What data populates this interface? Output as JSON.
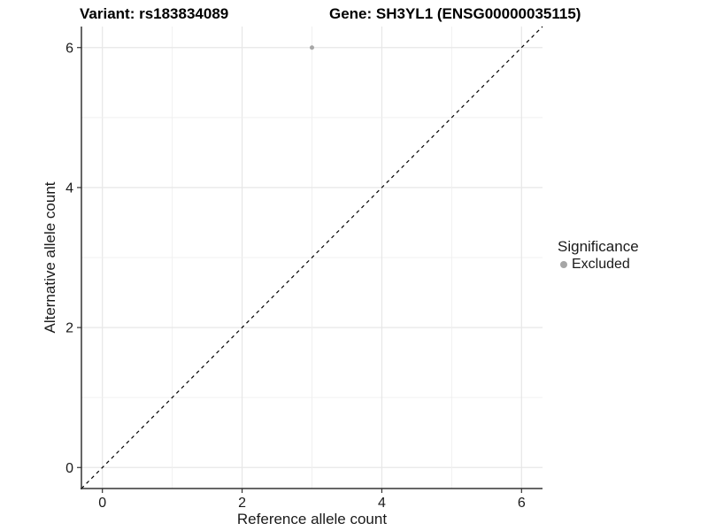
{
  "colors": {
    "background": "#ffffff",
    "grid_major": "#e7e7e7",
    "grid_minor": "#f0f0f0",
    "axis": "#333333",
    "tick": "#333333",
    "text": "#1a1a1a",
    "point": "#a6a6a6",
    "abline": "#000000"
  },
  "chart_data": {
    "type": "scatter",
    "title_left": "Variant: rs183834089",
    "title_right": "Gene: SH3YL1 (ENSG00000035115)",
    "xlabel": "Reference allele count",
    "ylabel": "Alternative allele count",
    "xlim": [
      -0.3,
      6.3
    ],
    "ylim": [
      -0.3,
      6.3
    ],
    "x_ticks": [
      0,
      2,
      4,
      6
    ],
    "y_ticks": [
      0,
      2,
      4,
      6
    ],
    "gridlines": [
      0,
      1,
      2,
      3,
      4,
      5,
      6
    ],
    "grid": true,
    "series": [
      {
        "name": "Excluded",
        "color": "#a6a6a6",
        "point_radius": 2.5,
        "points": [
          [
            3,
            6
          ]
        ]
      }
    ],
    "abline": {
      "slope": 1,
      "intercept": 0,
      "style": "dashed",
      "color": "#000000"
    },
    "legend": {
      "position": "right",
      "title": "Significance",
      "entries": [
        {
          "label": "Excluded",
          "color": "#a6a6a6"
        }
      ]
    }
  }
}
